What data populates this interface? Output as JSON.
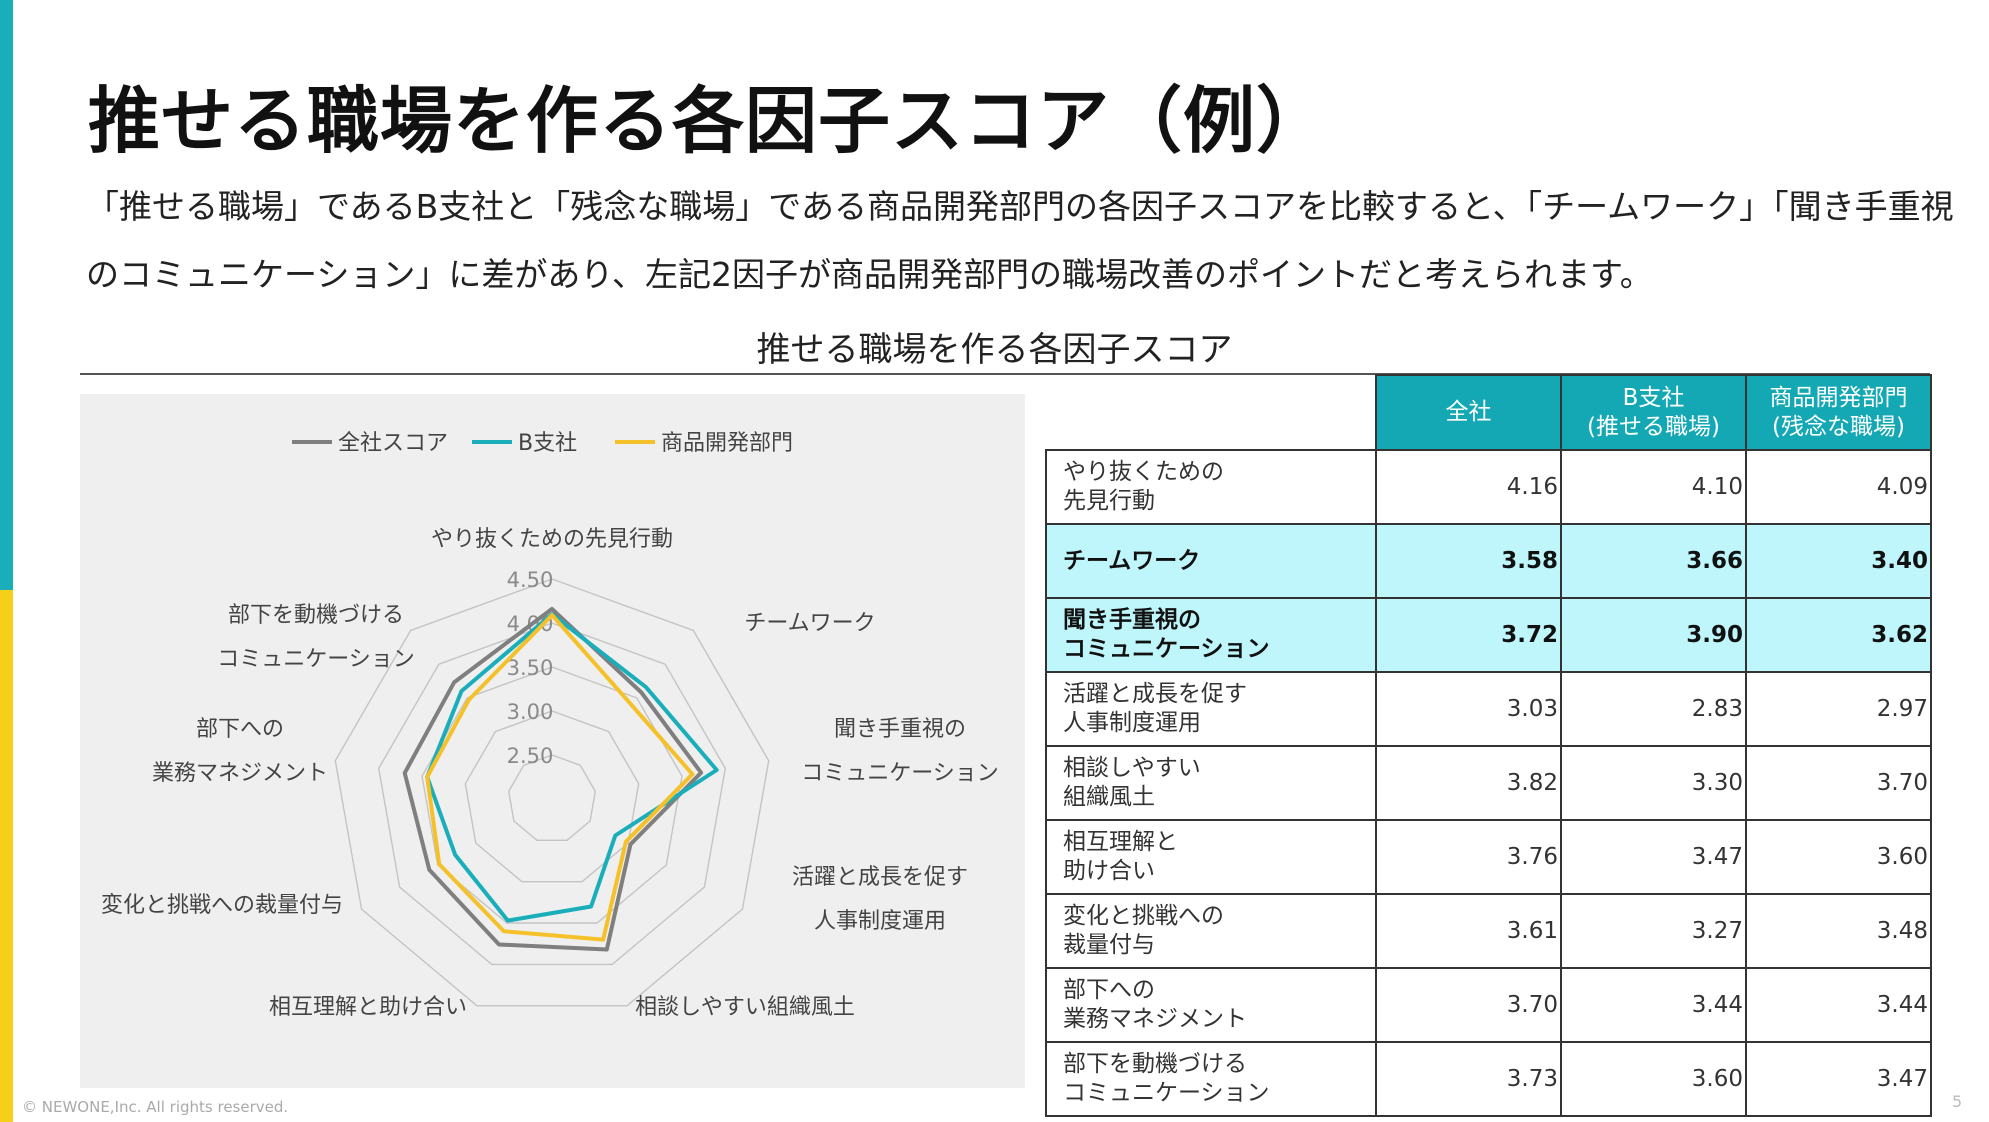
{
  "header": {
    "title": "推せる職場を作る各因子スコア（例）",
    "lead_line1": "「推せる職場」であるB支社と「残念な職場」である商品開発部門の各因子スコアを比較すると、「チームワーク」「聞き手重視",
    "lead_line2": "のコミュニケーション」に差があり、左記2因子が商品開発部門の職場改善のポイントだと考えられます。"
  },
  "chart_title": "推せる職場を作る各因子スコア",
  "footer": {
    "copyright": "© NEWONE,Inc.  All rights reserved.",
    "page": "5"
  },
  "colors": {
    "accent_teal": "#14a8b5",
    "accent_yellow": "#f5cf1a",
    "highlight_row": "#bff6fb"
  },
  "chart_data": {
    "type": "radar",
    "categories": [
      "やり抜くための先見行動",
      "チームワーク",
      "聞き手重視の|コミュニケーション",
      "活躍と成長を促す|人事制度運用",
      "相談しやすい組織風土",
      "相互理解と助け合い",
      "変化と挑戦への裁量付与",
      "部下への|業務マネジメント",
      "部下を動機づける|コミュニケーション"
    ],
    "axis": {
      "min": 2.0,
      "max": 4.5,
      "ticks": [
        2.5,
        3.0,
        3.5,
        4.0,
        4.5
      ],
      "tick_labels": [
        "2.50",
        "3.00",
        "3.50",
        "4.00",
        "4.50"
      ]
    },
    "legend_position": "top",
    "series": [
      {
        "name": "全社スコア",
        "color": "#7f7f7f",
        "values": [
          4.16,
          3.58,
          3.72,
          3.03,
          3.82,
          3.76,
          3.61,
          3.7,
          3.73
        ]
      },
      {
        "name": "B支社",
        "color": "#1aaebb",
        "values": [
          4.1,
          3.66,
          3.9,
          2.83,
          3.3,
          3.47,
          3.27,
          3.44,
          3.6
        ]
      },
      {
        "name": "商品開発部門",
        "color": "#f5c12a",
        "values": [
          4.09,
          3.4,
          3.62,
          2.97,
          3.7,
          3.6,
          3.48,
          3.44,
          3.47
        ]
      }
    ]
  },
  "table": {
    "headers": [
      {
        "line1": "全社",
        "line2": ""
      },
      {
        "line1": "B支社",
        "line2": "(推せる職場)"
      },
      {
        "line1": "商品開発部門",
        "line2": "(残念な職場)"
      }
    ],
    "rows": [
      {
        "label1": "やり抜くための",
        "label2": "先見行動",
        "values": [
          "4.16",
          "4.10",
          "4.09"
        ],
        "highlight": false
      },
      {
        "label1": "チームワーク",
        "label2": "",
        "values": [
          "3.58",
          "3.66",
          "3.40"
        ],
        "highlight": true
      },
      {
        "label1": "聞き手重視の",
        "label2": "コミュニケーション",
        "values": [
          "3.72",
          "3.90",
          "3.62"
        ],
        "highlight": true
      },
      {
        "label1": "活躍と成長を促す",
        "label2": "人事制度運用",
        "values": [
          "3.03",
          "2.83",
          "2.97"
        ],
        "highlight": false
      },
      {
        "label1": "相談しやすい",
        "label2": "組織風土",
        "values": [
          "3.82",
          "3.30",
          "3.70"
        ],
        "highlight": false
      },
      {
        "label1": "相互理解と",
        "label2": "助け合い",
        "values": [
          "3.76",
          "3.47",
          "3.60"
        ],
        "highlight": false
      },
      {
        "label1": "変化と挑戦への",
        "label2": "裁量付与",
        "values": [
          "3.61",
          "3.27",
          "3.48"
        ],
        "highlight": false
      },
      {
        "label1": "部下への",
        "label2": "業務マネジメント",
        "values": [
          "3.70",
          "3.44",
          "3.44"
        ],
        "highlight": false
      },
      {
        "label1": "部下を動機づける",
        "label2": "コミュニケーション",
        "values": [
          "3.73",
          "3.60",
          "3.47"
        ],
        "highlight": false
      }
    ]
  }
}
